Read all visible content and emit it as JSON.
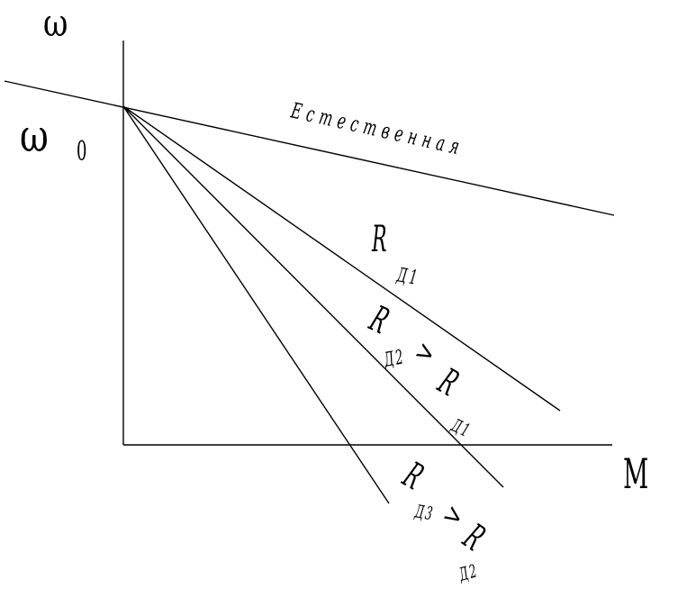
{
  "axes": {
    "y_label": "ω",
    "y_intercept_symbol": "ω",
    "y_intercept_subscript": "0",
    "x_label": "М"
  },
  "curves": {
    "natural": "Естественная",
    "rd1": {
      "symbol": "R",
      "subscript": "Д1"
    },
    "rd2": {
      "symbol": "R",
      "subscript": "Д2",
      "relation": ">",
      "symbol2": "R",
      "subscript2": "Д1"
    },
    "rd3": {
      "symbol": "R",
      "subscript": "Д3",
      "relation": ">",
      "symbol2": "R",
      "subscript2": "Д2"
    }
  }
}
